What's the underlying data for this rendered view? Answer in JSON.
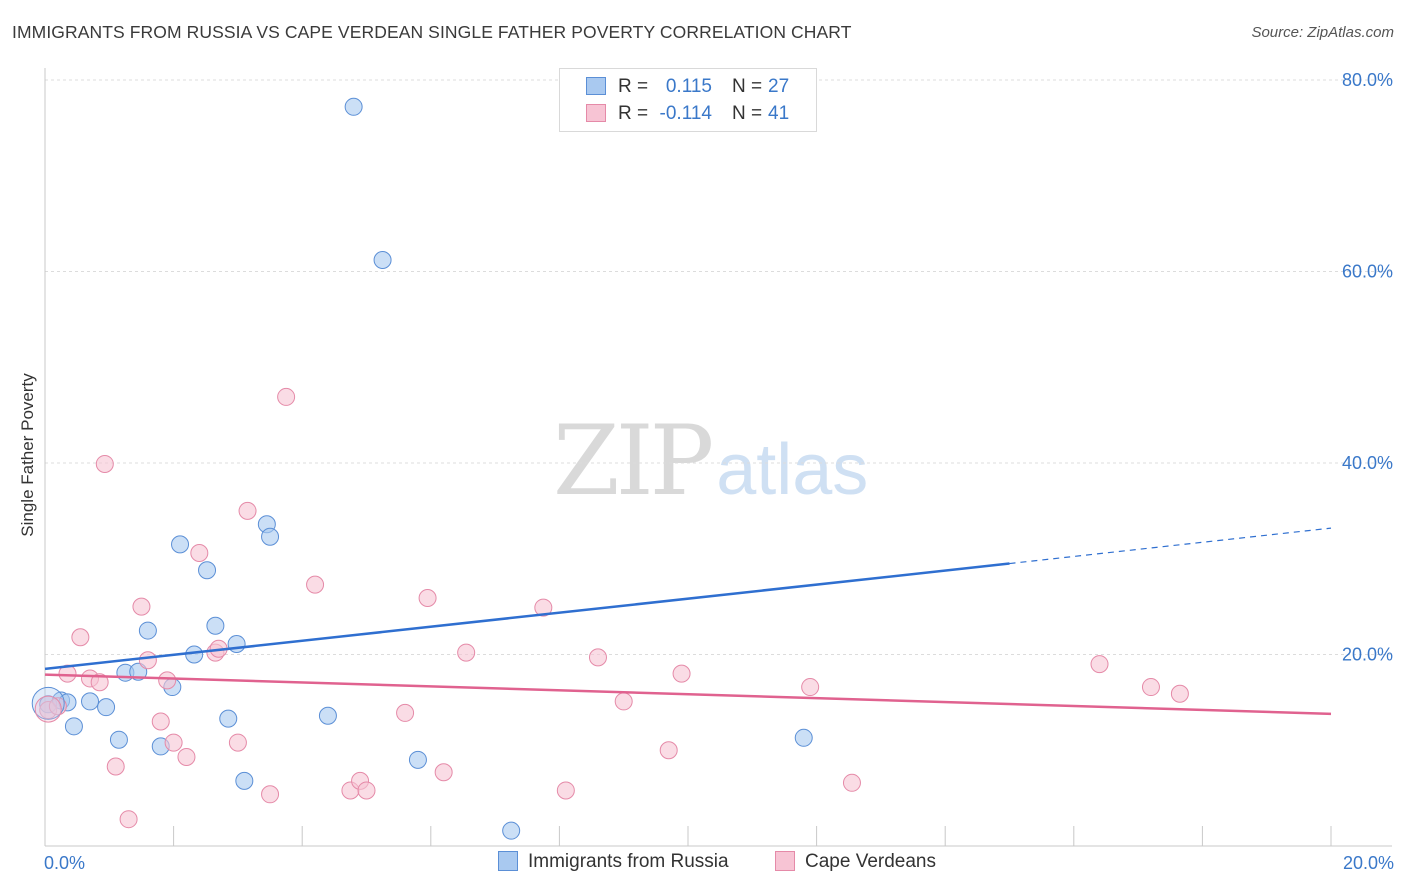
{
  "header": {
    "title": "IMMIGRANTS FROM RUSSIA VS CAPE VERDEAN SINGLE FATHER POVERTY CORRELATION CHART",
    "source": "Source: ZipAtlas.com"
  },
  "watermark": {
    "zip": "ZIP",
    "atlas": "atlas"
  },
  "legend_top": {
    "rows": [
      {
        "r_label": "R =",
        "r_value": "0.115",
        "n_label": "N =",
        "n_value": "27",
        "color": "#a9c9f0",
        "border": "#5b8fd6"
      },
      {
        "r_label": "R =",
        "r_value": "-0.114",
        "n_label": "N =",
        "n_value": "41",
        "color": "#f7c4d4",
        "border": "#e58aa8"
      }
    ]
  },
  "legend_bottom": [
    {
      "label": "Immigrants from Russia",
      "color": "#a9c9f0",
      "border": "#5b8fd6"
    },
    {
      "label": "Cape Verdeans",
      "color": "#f7c4d4",
      "border": "#e58aa8"
    }
  ],
  "chart_data": {
    "type": "scatter",
    "title": "IMMIGRANTS FROM RUSSIA VS CAPE VERDEAN SINGLE FATHER POVERTY CORRELATION CHART",
    "ylabel": "Single Father Poverty",
    "xlabel": "",
    "xlim": [
      0,
      20
    ],
    "ylim": [
      0,
      80
    ],
    "x_ticks": [
      {
        "value": 0,
        "label": "0.0%"
      },
      {
        "value": 20,
        "label": "20.0%"
      }
    ],
    "y_ticks": [
      {
        "value": 20,
        "label": "20.0%"
      },
      {
        "value": 40,
        "label": "40.0%"
      },
      {
        "value": 60,
        "label": "60.0%"
      },
      {
        "value": 80,
        "label": "80.0%"
      }
    ],
    "grid": true,
    "legend_position": "top-center",
    "series": [
      {
        "name": "Immigrants from Russia",
        "color": "#a9c9f0",
        "stroke": "#5b8fd6",
        "trend_color": "#2f6fd0",
        "trend": {
          "x0": 0,
          "y0": 18.5,
          "x1": 15,
          "y1": 29.5,
          "dash_to_x": 20,
          "dash_to_y": 33.2
        },
        "points": [
          [
            0.05,
            14.8
          ],
          [
            0.25,
            15.2
          ],
          [
            0.35,
            15.0
          ],
          [
            0.45,
            12.5
          ],
          [
            0.7,
            15.1
          ],
          [
            0.95,
            14.5
          ],
          [
            1.15,
            11.1
          ],
          [
            1.25,
            18.1
          ],
          [
            1.45,
            18.2
          ],
          [
            1.6,
            22.5
          ],
          [
            1.8,
            10.4
          ],
          [
            1.98,
            16.6
          ],
          [
            2.1,
            31.5
          ],
          [
            2.32,
            20.0
          ],
          [
            2.52,
            28.8
          ],
          [
            2.65,
            23.0
          ],
          [
            2.85,
            13.3
          ],
          [
            2.98,
            21.1
          ],
          [
            3.1,
            6.8
          ],
          [
            3.45,
            33.6
          ],
          [
            3.5,
            32.3
          ],
          [
            4.4,
            13.6
          ],
          [
            4.8,
            77.2
          ],
          [
            5.25,
            61.2
          ],
          [
            5.8,
            9.0
          ],
          [
            7.25,
            1.6
          ],
          [
            11.8,
            11.3
          ]
        ]
      },
      {
        "name": "Cape Verdeans",
        "color": "#f7c4d4",
        "stroke": "#e58aa8",
        "trend_color": "#e0628f",
        "trend": {
          "x0": 0,
          "y0": 17.9,
          "x1": 20,
          "y1": 13.8
        },
        "points": [
          [
            0.05,
            14.2
          ],
          [
            0.2,
            14.6
          ],
          [
            0.35,
            18.0
          ],
          [
            0.55,
            21.8
          ],
          [
            0.7,
            17.5
          ],
          [
            0.85,
            17.1
          ],
          [
            0.93,
            39.9
          ],
          [
            1.1,
            8.3
          ],
          [
            1.3,
            2.8
          ],
          [
            1.5,
            25.0
          ],
          [
            1.6,
            19.4
          ],
          [
            1.8,
            13.0
          ],
          [
            1.9,
            17.3
          ],
          [
            2.0,
            10.8
          ],
          [
            2.2,
            9.3
          ],
          [
            2.4,
            30.6
          ],
          [
            2.65,
            20.2
          ],
          [
            2.7,
            20.6
          ],
          [
            3.0,
            10.8
          ],
          [
            3.15,
            35.0
          ],
          [
            3.5,
            5.4
          ],
          [
            3.75,
            46.9
          ],
          [
            4.2,
            27.3
          ],
          [
            4.75,
            5.8
          ],
          [
            4.9,
            6.8
          ],
          [
            5.0,
            5.8
          ],
          [
            5.6,
            13.9
          ],
          [
            5.95,
            25.9
          ],
          [
            6.2,
            7.7
          ],
          [
            6.55,
            20.2
          ],
          [
            7.75,
            24.9
          ],
          [
            8.1,
            5.8
          ],
          [
            8.6,
            19.7
          ],
          [
            9.0,
            15.1
          ],
          [
            9.7,
            10.0
          ],
          [
            9.9,
            18.0
          ],
          [
            11.9,
            16.6
          ],
          [
            12.55,
            6.6
          ],
          [
            16.4,
            19.0
          ],
          [
            17.2,
            16.6
          ],
          [
            17.65,
            15.9
          ]
        ]
      }
    ]
  }
}
